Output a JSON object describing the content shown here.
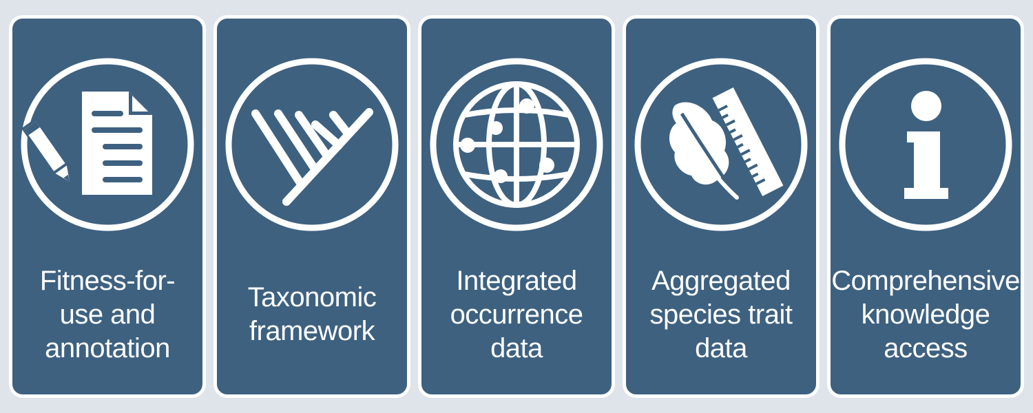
{
  "cards": [
    {
      "label": "Fitness-for-\nuse and\nannotation",
      "icon": "document-pencil-icon"
    },
    {
      "label": "Taxonomic\nframework",
      "icon": "phylogenetic-tree-icon"
    },
    {
      "label": "Integrated\noccurrence\ndata",
      "icon": "globe-occurrence-icon"
    },
    {
      "label": "Aggregated\nspecies trait\ndata",
      "icon": "leaf-ruler-icon"
    },
    {
      "label": "Comprehensive\nknowledge\naccess",
      "icon": "info-icon"
    }
  ],
  "colors": {
    "background": "#dfe3ea",
    "card": "#3e6180",
    "foreground": "#ffffff"
  }
}
